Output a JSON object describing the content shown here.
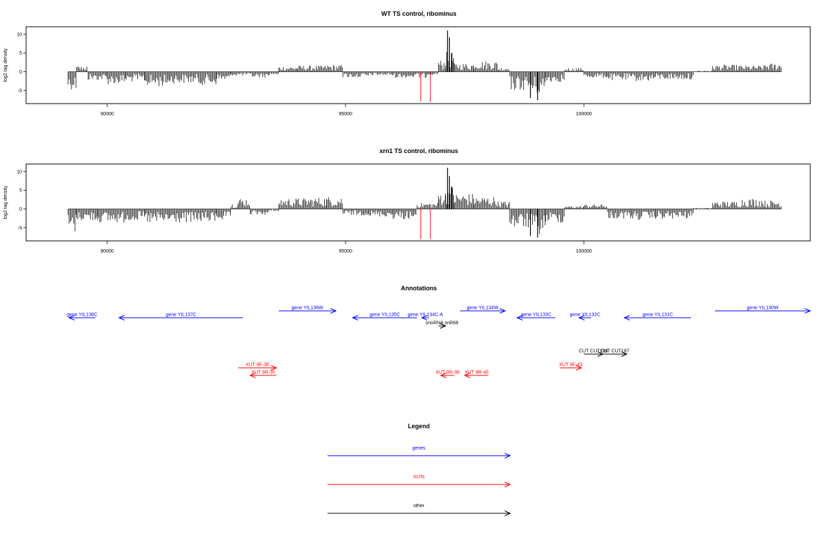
{
  "chart_data": [
    {
      "type": "bar",
      "title": "WT TS control, ribominus",
      "ylabel": "log2 tag density",
      "xlabel": "",
      "xlim": [
        88300,
        104750
      ],
      "ylim": [
        -8.5,
        12
      ],
      "x_ticks": [
        90000,
        95000,
        100000
      ],
      "x_tick_labels": [
        "90000",
        "95000",
        "100000"
      ],
      "y_ticks": [
        -5,
        0,
        5,
        10
      ],
      "y_tick_labels": [
        "-5",
        "0",
        "5",
        "10"
      ],
      "grid": false,
      "density_profile": [
        [
          89180,
          89360,
          -4.5
        ],
        [
          89360,
          89600,
          1.5
        ],
        [
          89600,
          90000,
          -2.2
        ],
        [
          90000,
          90400,
          -3.2
        ],
        [
          90400,
          90800,
          -2.6
        ],
        [
          90800,
          91300,
          -3.8
        ],
        [
          91300,
          91900,
          -3.0
        ],
        [
          91900,
          92300,
          -3.4
        ],
        [
          92300,
          92600,
          -2.4
        ],
        [
          92600,
          93000,
          -1.0
        ],
        [
          93000,
          93400,
          -1.5
        ],
        [
          93400,
          93600,
          -0.8
        ],
        [
          93600,
          94000,
          1.4
        ],
        [
          94000,
          94600,
          1.6
        ],
        [
          94600,
          94950,
          1.8
        ],
        [
          94950,
          95500,
          -1.5
        ],
        [
          95500,
          96000,
          -1.0
        ],
        [
          96000,
          96700,
          -1.6
        ],
        [
          96700,
          96950,
          -0.8
        ],
        [
          96950,
          97100,
          3.0
        ],
        [
          97100,
          97280,
          5.0
        ],
        [
          97280,
          97700,
          2.2
        ],
        [
          97700,
          98200,
          2.8
        ],
        [
          98200,
          98450,
          1.2
        ],
        [
          98450,
          98900,
          -4.8
        ],
        [
          98900,
          99200,
          -5.8
        ],
        [
          99200,
          99600,
          -2.6
        ],
        [
          99600,
          100000,
          1.0
        ],
        [
          100000,
          100500,
          -1.6
        ],
        [
          100500,
          101000,
          -2.2
        ],
        [
          101000,
          101500,
          -2.4
        ],
        [
          101500,
          102300,
          -2.0
        ],
        [
          102300,
          102700,
          0.3
        ],
        [
          102700,
          103300,
          1.8
        ],
        [
          103300,
          103800,
          1.6
        ],
        [
          103800,
          104150,
          2.2
        ]
      ],
      "peaks": [
        [
          97140,
          11.0
        ],
        [
          97180,
          9.2
        ],
        [
          97230,
          5.0
        ],
        [
          99030,
          -7.6
        ],
        [
          98880,
          -7.0
        ]
      ],
      "red_marks": [
        [
          96580,
          -8.0
        ],
        [
          96780,
          -8.0
        ]
      ]
    },
    {
      "type": "bar",
      "title": "xrn1 TS control, ribominus",
      "ylabel": "log2 tag density",
      "xlabel": "",
      "xlim": [
        88300,
        104750
      ],
      "ylim": [
        -8.5,
        12
      ],
      "x_ticks": [
        90000,
        95000,
        100000
      ],
      "x_tick_labels": [
        "90000",
        "95000",
        "100000"
      ],
      "y_ticks": [
        -5,
        0,
        5,
        10
      ],
      "y_tick_labels": [
        "-5",
        "0",
        "5",
        "10"
      ],
      "grid": false,
      "density_profile": [
        [
          89180,
          89360,
          -6.0
        ],
        [
          89360,
          89800,
          -3.0
        ],
        [
          89800,
          90400,
          -3.5
        ],
        [
          90400,
          90800,
          -3.0
        ],
        [
          90800,
          91300,
          -3.8
        ],
        [
          91300,
          91900,
          -3.6
        ],
        [
          91900,
          92300,
          -3.4
        ],
        [
          92300,
          92600,
          -2.8
        ],
        [
          92600,
          92750,
          1.5
        ],
        [
          92750,
          93000,
          2.8
        ],
        [
          93000,
          93400,
          -1.5
        ],
        [
          93400,
          93600,
          -0.6
        ],
        [
          93600,
          94200,
          2.8
        ],
        [
          94200,
          94600,
          3.0
        ],
        [
          94600,
          94950,
          3.2
        ],
        [
          94950,
          95500,
          -1.6
        ],
        [
          95500,
          96000,
          -2.0
        ],
        [
          96000,
          96500,
          -2.6
        ],
        [
          96500,
          96950,
          1.6
        ],
        [
          96950,
          97100,
          4.6
        ],
        [
          97100,
          97280,
          6.0
        ],
        [
          97280,
          97700,
          4.0
        ],
        [
          97700,
          98200,
          3.2
        ],
        [
          98200,
          98450,
          2.0
        ],
        [
          98450,
          98900,
          -5.0
        ],
        [
          98900,
          99200,
          -6.5
        ],
        [
          99200,
          99600,
          -3.5
        ],
        [
          99600,
          100000,
          0.8
        ],
        [
          100000,
          100500,
          1.2
        ],
        [
          100500,
          101000,
          -2.5
        ],
        [
          101000,
          101500,
          -2.8
        ],
        [
          101500,
          102300,
          -2.6
        ],
        [
          102300,
          102700,
          0.3
        ],
        [
          102700,
          103300,
          2.0
        ],
        [
          103300,
          103800,
          2.8
        ],
        [
          103800,
          104150,
          2.2
        ]
      ],
      "peaks": [
        [
          97140,
          11.0
        ],
        [
          97180,
          8.8
        ],
        [
          97230,
          6.0
        ],
        [
          99030,
          -7.6
        ],
        [
          98880,
          -7.2
        ]
      ],
      "red_marks": [
        [
          96580,
          -8.0
        ],
        [
          96780,
          -8.0
        ]
      ]
    }
  ],
  "annotations": {
    "title": "Annotations",
    "xlim": [
      88300,
      104750
    ],
    "features": [
      {
        "label": "gene YIL138C",
        "start": 89200,
        "end": 89750,
        "strand": "-",
        "row": 2,
        "color": "#0000ff"
      },
      {
        "label": "gene YIL137C",
        "start": 90250,
        "end": 92850,
        "strand": "-",
        "row": 2,
        "color": "#0000ff"
      },
      {
        "label": "gene YIL136W",
        "start": 93600,
        "end": 94800,
        "strand": "+",
        "row": 1,
        "color": "#0000ff"
      },
      {
        "label": "gene YIL135C",
        "start": 95150,
        "end": 96500,
        "strand": "-",
        "row": 2,
        "color": "#0000ff"
      },
      {
        "label": "gene YIL134C-A",
        "start": 96600,
        "end": 96750,
        "strand": "-",
        "row": 2,
        "color": "#0000ff"
      },
      {
        "label": "gene YIL134W",
        "start": 97400,
        "end": 98350,
        "strand": "+",
        "row": 1,
        "color": "#0000ff"
      },
      {
        "label": "gene YIL133C",
        "start": 98600,
        "end": 99400,
        "strand": "-",
        "row": 2,
        "color": "#0000ff"
      },
      {
        "label": "gene YIL132C",
        "start": 99900,
        "end": 100150,
        "strand": "-",
        "row": 2,
        "color": "#0000ff"
      },
      {
        "label": "gene YIL131C",
        "start": 100850,
        "end": 102250,
        "strand": "-",
        "row": 2,
        "color": "#0000ff"
      },
      {
        "label": "gene YIL130W",
        "start": 102750,
        "end": 104750,
        "strand": "+",
        "row": 1,
        "color": "#0000ff"
      },
      {
        "label": "snoRNA snR68",
        "start": 96950,
        "end": 97100,
        "strand": "+",
        "row": 3,
        "color": "#000000"
      },
      {
        "label": "CUT CUT186",
        "start": 100000,
        "end": 100400,
        "strand": "+",
        "row": 4,
        "color": "#000000"
      },
      {
        "label": "CUT CUT187",
        "start": 100400,
        "end": 100900,
        "strand": "+",
        "row": 4,
        "color": "#000000"
      },
      {
        "label": "XUT 9F-38",
        "start": 92750,
        "end": 93550,
        "strand": "+",
        "row": 5,
        "color": "#ff0000"
      },
      {
        "label": "XUT 9R-35",
        "start": 93000,
        "end": 93550,
        "strand": "-",
        "row": 6,
        "color": "#ff0000"
      },
      {
        "label": "XUT 9R-38",
        "start": 97000,
        "end": 97280,
        "strand": "-",
        "row": 6,
        "color": "#ff0000"
      },
      {
        "label": "XUT 9R-40",
        "start": 97500,
        "end": 98000,
        "strand": "-",
        "row": 6,
        "color": "#ff0000"
      },
      {
        "label": "XUT 9F-43",
        "start": 99500,
        "end": 99950,
        "strand": "+",
        "row": 5,
        "color": "#ff0000"
      }
    ]
  },
  "legend": {
    "title": "Legend",
    "items": [
      {
        "label": "genes",
        "color": "#0000ff"
      },
      {
        "label": "XUTs",
        "color": "#ff0000"
      },
      {
        "label": "other",
        "color": "#000000"
      }
    ]
  }
}
